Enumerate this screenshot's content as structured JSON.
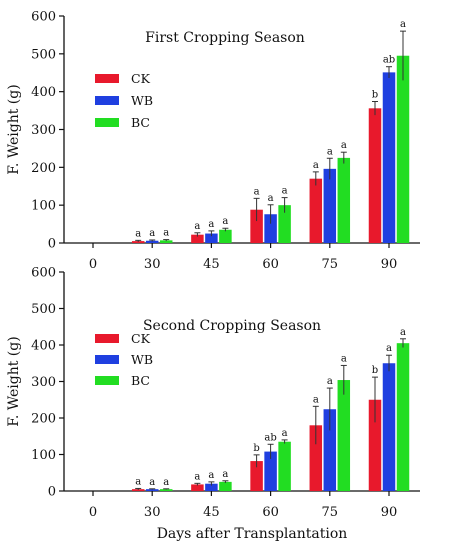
{
  "chart_data": [
    {
      "type": "bar",
      "title": "First Cropping Season",
      "xlabel": "",
      "ylabel": "F. Weight (g)",
      "ylim": [
        0,
        600
      ],
      "yticks": [
        0,
        100,
        200,
        300,
        400,
        500,
        600
      ],
      "categories": [
        "0",
        "30",
        "45",
        "60",
        "75",
        "90"
      ],
      "legend_position": "upper-left",
      "series": [
        {
          "name": "CK",
          "color": "#e8192c",
          "values": [
            0,
            5,
            22,
            88,
            170,
            356
          ],
          "errors": [
            0,
            2,
            5,
            30,
            18,
            18
          ],
          "labels": [
            "",
            "a",
            "a",
            "a",
            "a",
            "b"
          ]
        },
        {
          "name": "WB",
          "color": "#1f3fe0",
          "values": [
            0,
            6,
            25,
            76,
            196,
            451
          ],
          "errors": [
            0,
            2,
            7,
            25,
            28,
            15
          ],
          "labels": [
            "",
            "a",
            "a",
            "a",
            "a",
            "ab"
          ]
        },
        {
          "name": "BC",
          "color": "#22dd22",
          "values": [
            0,
            7,
            35,
            100,
            225,
            495
          ],
          "errors": [
            0,
            2,
            4,
            20,
            15,
            65
          ],
          "labels": [
            "",
            "a",
            "a",
            "a",
            "a",
            "a"
          ]
        }
      ]
    },
    {
      "type": "bar",
      "title": "Second Cropping Season",
      "xlabel": "Days after Transplantation",
      "ylabel": "F. Weight (g)",
      "ylim": [
        0,
        600
      ],
      "yticks": [
        0,
        100,
        200,
        300,
        400,
        500,
        600
      ],
      "categories": [
        "0",
        "30",
        "45",
        "60",
        "75",
        "90"
      ],
      "legend_position": "middle-left",
      "series": [
        {
          "name": "CK",
          "color": "#e8192c",
          "values": [
            0,
            5,
            18,
            82,
            180,
            250
          ],
          "errors": [
            0,
            2,
            3,
            17,
            52,
            62
          ],
          "labels": [
            "",
            "a",
            "a",
            "b",
            "a",
            "b"
          ]
        },
        {
          "name": "WB",
          "color": "#1f3fe0",
          "values": [
            0,
            5,
            20,
            108,
            224,
            350
          ],
          "errors": [
            0,
            1,
            5,
            20,
            58,
            22
          ],
          "labels": [
            "",
            "a",
            "a",
            "ab",
            "a",
            "a"
          ]
        },
        {
          "name": "BC",
          "color": "#22dd22",
          "values": [
            0,
            5,
            25,
            135,
            304,
            405
          ],
          "errors": [
            0,
            1,
            3,
            5,
            40,
            12
          ],
          "labels": [
            "",
            "a",
            "a",
            "a",
            "a",
            "a"
          ]
        }
      ]
    }
  ]
}
